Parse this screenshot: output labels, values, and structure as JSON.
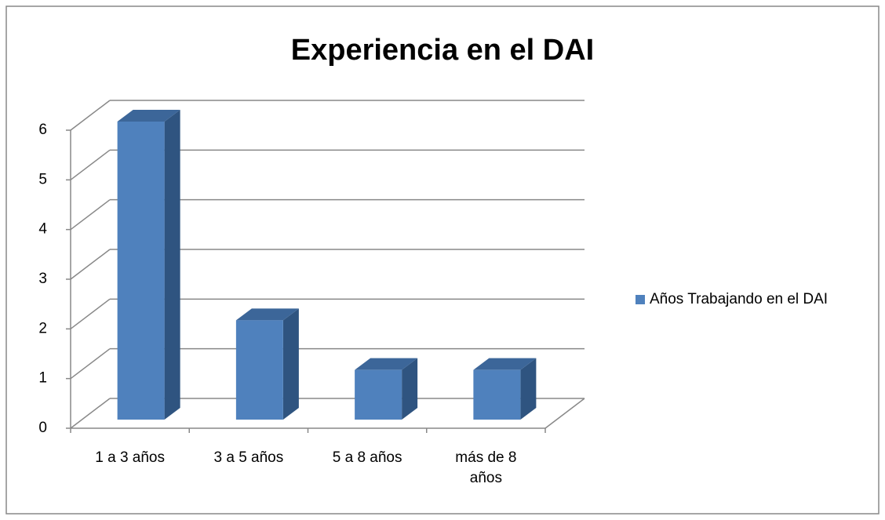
{
  "chart_data": {
    "type": "bar3d",
    "title": "Experiencia en el DAI",
    "categories": [
      "1 a 3 años",
      "3 a 5 años",
      "5 a 8 años",
      "más de 8 años"
    ],
    "series": [
      {
        "name": "Años Trabajando en el DAI",
        "color": "#4f81bd",
        "values": [
          6,
          2,
          1,
          1
        ]
      }
    ],
    "ylim": [
      0,
      6
    ],
    "yticks": [
      0,
      1,
      2,
      3,
      4,
      5,
      6
    ],
    "grid": true,
    "legend": "right"
  }
}
